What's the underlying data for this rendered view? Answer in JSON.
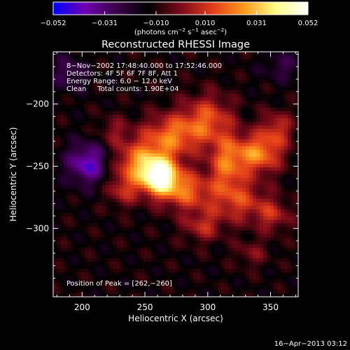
{
  "chart_data": {
    "type": "heatmap",
    "title": "Reconstructed RHESSI Image",
    "xlabel": "Heliocentric X (arcsec)",
    "ylabel": "Heliocentric Y (arcsec)",
    "xlim": [
      177,
      372
    ],
    "ylim": [
      -355,
      -158
    ],
    "x_ticks": [
      200,
      250,
      300,
      350
    ],
    "x_tick_labels": [
      "200",
      "250",
      "300",
      "350"
    ],
    "y_ticks": [
      -200,
      -250,
      -300
    ],
    "y_tick_labels": [
      "−200",
      "−250",
      "−300"
    ],
    "colorbar": {
      "range": [
        -0.052,
        0.052
      ],
      "ticks": [
        -0.052,
        -0.031,
        -0.01,
        0.01,
        0.031,
        0.052
      ],
      "tick_labels": [
        "−0.052",
        "−0.031",
        "−0.010",
        "0.010",
        "0.031",
        "0.052"
      ],
      "unit_parts": [
        "(photons cm",
        "−2",
        " s",
        "−1",
        " asec",
        "−2",
        ")"
      ],
      "colormap": [
        "#0000ff",
        "#7000b0",
        "#3a0048",
        "#000000",
        "#7a0a1a",
        "#e23b1a",
        "#ff9a1a",
        "#ffff8a",
        "#ffffff"
      ]
    },
    "annotations": [
      "8−Nov−2002 17:48:40.000 to 17:52:46.000",
      "Detectors: 4F 5F 6F 7F 8F, Att 1",
      "Energy Range: 6.0 − 12.0 keV",
      "Clean     Total counts: 1.90E+04"
    ],
    "peak_text": "Position of Peak = [262,−260]",
    "peak": [
      262,
      -260
    ],
    "sources": [
      {
        "x": 262,
        "y": -259,
        "sx": 10,
        "sy": 10,
        "amp": 0.052
      },
      {
        "x": 248,
        "y": -248,
        "sx": 16,
        "sy": 13,
        "amp": 0.035
      },
      {
        "x": 283,
        "y": -270,
        "sx": 14,
        "sy": 11,
        "amp": 0.028
      },
      {
        "x": 272,
        "y": -225,
        "sx": 16,
        "sy": 12,
        "amp": 0.029
      },
      {
        "x": 300,
        "y": -212,
        "sx": 14,
        "sy": 14,
        "amp": 0.025
      },
      {
        "x": 315,
        "y": -248,
        "sx": 10,
        "sy": 16,
        "amp": 0.028
      },
      {
        "x": 340,
        "y": -240,
        "sx": 13,
        "sy": 11,
        "amp": 0.034
      },
      {
        "x": 355,
        "y": -220,
        "sx": 9,
        "sy": 10,
        "amp": 0.02
      },
      {
        "x": 325,
        "y": -278,
        "sx": 16,
        "sy": 12,
        "amp": 0.022
      },
      {
        "x": 296,
        "y": -298,
        "sx": 11,
        "sy": 9,
        "amp": 0.018
      },
      {
        "x": 352,
        "y": -290,
        "sx": 10,
        "sy": 9,
        "amp": 0.017
      },
      {
        "x": 335,
        "y": -320,
        "sx": 9,
        "sy": 8,
        "amp": 0.011
      },
      {
        "x": 232,
        "y": -270,
        "sx": 9,
        "sy": 9,
        "amp": 0.016
      },
      {
        "x": 225,
        "y": -222,
        "sx": 9,
        "sy": 8,
        "amp": 0.012
      },
      {
        "x": 205,
        "y": -248,
        "sx": 12,
        "sy": 12,
        "amp": -0.03
      },
      {
        "x": 190,
        "y": -175,
        "sx": 10,
        "sy": 10,
        "amp": -0.015
      },
      {
        "x": 360,
        "y": -170,
        "sx": 12,
        "sy": 8,
        "amp": -0.012
      }
    ]
  },
  "footer": {
    "date": "16−Apr−2013 03:12"
  }
}
